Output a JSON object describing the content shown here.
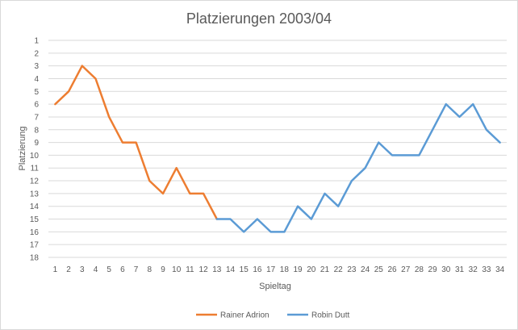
{
  "chart_data": {
    "type": "line",
    "title": "Platzierungen 2003/04",
    "xlabel": "Spieltag",
    "ylabel": "Platzierung",
    "x": [
      1,
      2,
      3,
      4,
      5,
      6,
      7,
      8,
      9,
      10,
      11,
      12,
      13,
      14,
      15,
      16,
      17,
      18,
      19,
      20,
      21,
      22,
      23,
      24,
      25,
      26,
      27,
      28,
      29,
      30,
      31,
      32,
      33,
      34
    ],
    "ylim": [
      1,
      18
    ],
    "y_reversed": true,
    "y_ticks": [
      1,
      2,
      3,
      4,
      5,
      6,
      7,
      8,
      9,
      10,
      11,
      12,
      13,
      14,
      15,
      16,
      17,
      18
    ],
    "grid": "horizontal",
    "legend_position": "bottom",
    "series": [
      {
        "name": "Rainer Adrion",
        "color": "#ED7D31",
        "x": [
          1,
          2,
          3,
          4,
          5,
          6,
          7,
          8,
          9,
          10,
          11,
          12,
          13
        ],
        "values": [
          6,
          5,
          3,
          4,
          7,
          9,
          9,
          12,
          13,
          11,
          13,
          13,
          15
        ]
      },
      {
        "name": "Robin Dutt",
        "color": "#5B9BD5",
        "x": [
          13,
          14,
          15,
          16,
          17,
          18,
          19,
          20,
          21,
          22,
          23,
          24,
          25,
          26,
          27,
          28,
          29,
          30,
          31,
          32,
          33,
          34
        ],
        "values": [
          15,
          15,
          16,
          15,
          16,
          16,
          14,
          15,
          13,
          14,
          12,
          11,
          9,
          10,
          10,
          10,
          8,
          6,
          7,
          6,
          8,
          9
        ]
      }
    ]
  }
}
